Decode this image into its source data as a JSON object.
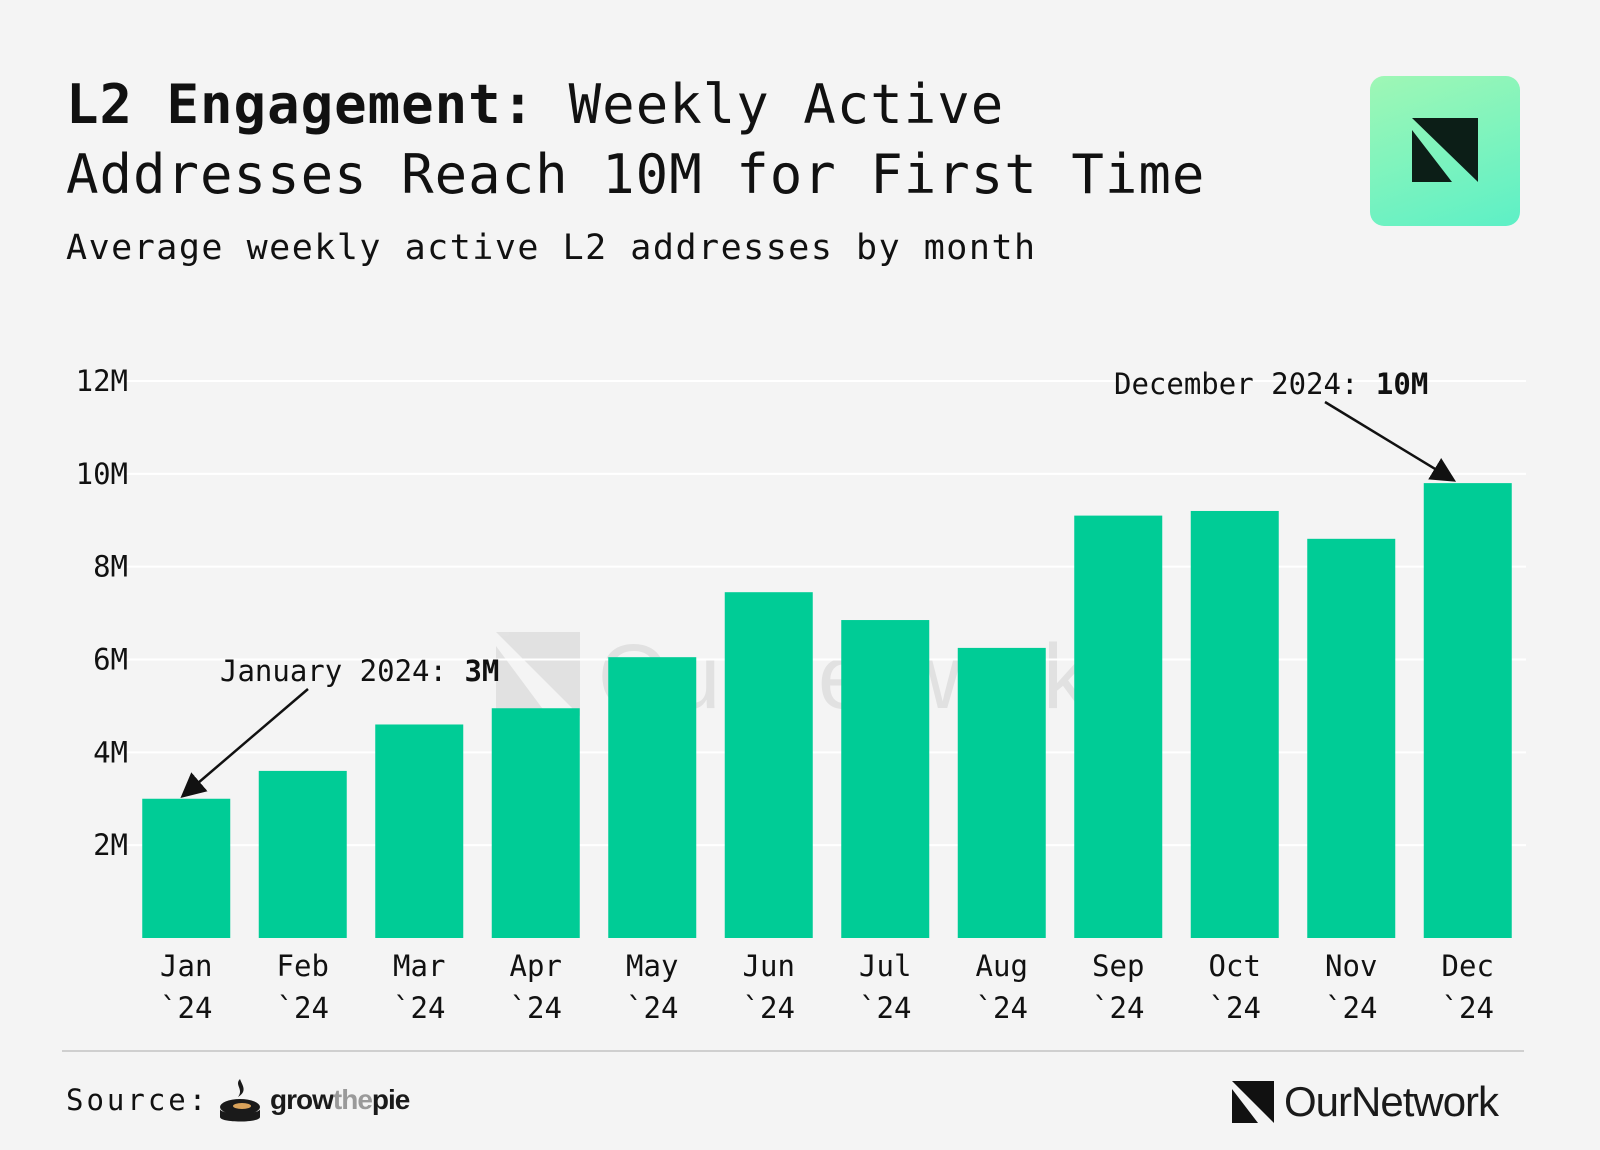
{
  "header": {
    "title_bold": "L2 Engagement:",
    "title_rest": "Weekly Active Addresses Reach 10M for First Time",
    "subtitle": "Average weekly active L2 addresses by month"
  },
  "colors": {
    "bar": "#00cc96",
    "background": "#f4f4f4",
    "gridline": "#ffffff",
    "text": "#111111"
  },
  "chart_data": {
    "type": "bar",
    "title": "L2 Engagement: Weekly Active Addresses Reach 10M for First Time",
    "subtitle": "Average weekly active L2 addresses by month",
    "xlabel": "",
    "ylabel": "",
    "categories": [
      [
        "Jan",
        "`24"
      ],
      [
        "Feb",
        "`24"
      ],
      [
        "Mar",
        "`24"
      ],
      [
        "Apr",
        "`24"
      ],
      [
        "May",
        "`24"
      ],
      [
        "Jun",
        "`24"
      ],
      [
        "Jul",
        "`24"
      ],
      [
        "Aug",
        "`24"
      ],
      [
        "Sep",
        "`24"
      ],
      [
        "Oct",
        "`24"
      ],
      [
        "Nov",
        "`24"
      ],
      [
        "Dec",
        "`24"
      ]
    ],
    "values": [
      3.0,
      3.6,
      4.6,
      4.95,
      6.05,
      7.45,
      6.85,
      6.25,
      9.1,
      9.2,
      8.6,
      9.8
    ],
    "unit": "M",
    "ylim": [
      0,
      12
    ],
    "yticks": [
      2,
      4,
      6,
      8,
      10,
      12
    ],
    "ytick_labels": [
      "2M",
      "4M",
      "6M",
      "8M",
      "10M",
      "12M"
    ],
    "grid": true,
    "annotations": [
      {
        "label": "January 2024: ",
        "value_text": "3M",
        "target_index": 0
      },
      {
        "label": "December 2024: ",
        "value_text": "10M",
        "target_index": 11
      }
    ],
    "watermark": "OurNetwork"
  },
  "footer": {
    "source_label": "Source:",
    "source_brand_left": "grow",
    "source_brand_mid": "the",
    "source_brand_right": "pie",
    "brand": "OurNetwork"
  },
  "icons": {
    "logo_tile": "ournetwork-logo-icon",
    "source_logo": "pie-icon",
    "brand_logo": "ournetwork-mark-icon"
  }
}
